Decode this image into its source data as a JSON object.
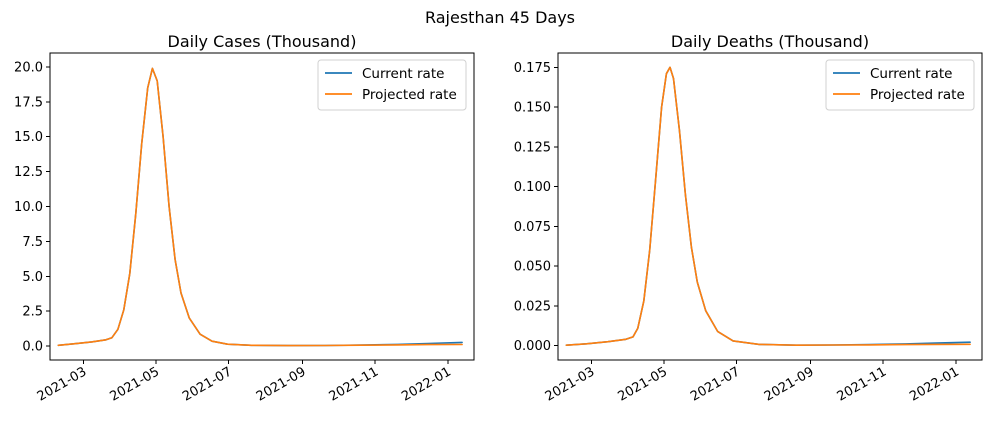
{
  "figure": {
    "suptitle": "Rajesthan 45 Days"
  },
  "chart_data": [
    {
      "type": "line",
      "title": "Daily Cases (Thousand)",
      "xlabel": "",
      "ylabel": "",
      "x_type": "date",
      "xlim": [
        "2021-02-01",
        "2022-01-23"
      ],
      "ylim": [
        -1.0,
        21.0
      ],
      "x_ticks": [
        "2021-03",
        "2021-05",
        "2021-07",
        "2021-09",
        "2021-11",
        "2022-01"
      ],
      "x_tick_dates": [
        "2021-03-01",
        "2021-05-01",
        "2021-07-01",
        "2021-09-01",
        "2021-11-01",
        "2022-01-01"
      ],
      "y_ticks": [
        "0.0",
        "2.5",
        "5.0",
        "7.5",
        "10.0",
        "12.5",
        "15.0",
        "17.5",
        "20.0"
      ],
      "y_tick_values": [
        0.0,
        2.5,
        5.0,
        7.5,
        10.0,
        12.5,
        15.0,
        17.5,
        20.0
      ],
      "grid": false,
      "legend_position": "upper-right",
      "series": [
        {
          "name": "Current rate",
          "color": "#1f77b4",
          "points": [
            [
              "2021-02-08",
              0.05
            ],
            [
              "2021-02-22",
              0.17
            ],
            [
              "2021-03-08",
              0.3
            ],
            [
              "2021-03-20",
              0.45
            ],
            [
              "2021-03-25",
              0.6
            ],
            [
              "2021-03-30",
              1.2
            ],
            [
              "2021-04-04",
              2.6
            ],
            [
              "2021-04-09",
              5.2
            ],
            [
              "2021-04-14",
              9.5
            ],
            [
              "2021-04-19",
              14.5
            ],
            [
              "2021-04-24",
              18.5
            ],
            [
              "2021-04-28",
              19.9
            ],
            [
              "2021-05-02",
              19.0
            ],
            [
              "2021-05-07",
              15.0
            ],
            [
              "2021-05-12",
              10.0
            ],
            [
              "2021-05-17",
              6.2
            ],
            [
              "2021-05-22",
              3.8
            ],
            [
              "2021-05-29",
              2.0
            ],
            [
              "2021-06-07",
              0.85
            ],
            [
              "2021-06-17",
              0.35
            ],
            [
              "2021-06-30",
              0.13
            ],
            [
              "2021-07-20",
              0.05
            ],
            [
              "2021-08-20",
              0.03
            ],
            [
              "2021-09-20",
              0.04
            ],
            [
              "2021-10-20",
              0.07
            ],
            [
              "2021-11-20",
              0.12
            ],
            [
              "2021-12-15",
              0.18
            ],
            [
              "2022-01-13",
              0.26
            ]
          ]
        },
        {
          "name": "Projected rate",
          "color": "#ff7f0e",
          "points": [
            [
              "2021-02-08",
              0.05
            ],
            [
              "2021-02-22",
              0.17
            ],
            [
              "2021-03-08",
              0.3
            ],
            [
              "2021-03-20",
              0.45
            ],
            [
              "2021-03-25",
              0.6
            ],
            [
              "2021-03-30",
              1.2
            ],
            [
              "2021-04-04",
              2.6
            ],
            [
              "2021-04-09",
              5.2
            ],
            [
              "2021-04-14",
              9.5
            ],
            [
              "2021-04-19",
              14.5
            ],
            [
              "2021-04-24",
              18.5
            ],
            [
              "2021-04-28",
              19.9
            ],
            [
              "2021-05-02",
              19.0
            ],
            [
              "2021-05-07",
              15.0
            ],
            [
              "2021-05-12",
              10.0
            ],
            [
              "2021-05-17",
              6.2
            ],
            [
              "2021-05-22",
              3.8
            ],
            [
              "2021-05-29",
              2.0
            ],
            [
              "2021-06-07",
              0.85
            ],
            [
              "2021-06-17",
              0.35
            ],
            [
              "2021-06-30",
              0.13
            ],
            [
              "2021-07-20",
              0.05
            ],
            [
              "2021-08-20",
              0.03
            ],
            [
              "2021-09-20",
              0.04
            ],
            [
              "2021-10-20",
              0.06
            ],
            [
              "2021-11-20",
              0.08
            ],
            [
              "2021-12-15",
              0.1
            ],
            [
              "2022-01-13",
              0.11
            ]
          ]
        }
      ]
    },
    {
      "type": "line",
      "title": "Daily Deaths (Thousand)",
      "xlabel": "",
      "ylabel": "",
      "x_type": "date",
      "xlim": [
        "2021-02-01",
        "2022-01-23"
      ],
      "ylim": [
        -0.009,
        0.184
      ],
      "x_ticks": [
        "2021-03",
        "2021-05",
        "2021-07",
        "2021-09",
        "2021-11",
        "2022-01"
      ],
      "x_tick_dates": [
        "2021-03-01",
        "2021-05-01",
        "2021-07-01",
        "2021-09-01",
        "2021-11-01",
        "2022-01-01"
      ],
      "y_ticks": [
        "0.000",
        "0.025",
        "0.050",
        "0.075",
        "0.100",
        "0.125",
        "0.150",
        "0.175"
      ],
      "y_tick_values": [
        0.0,
        0.025,
        0.05,
        0.075,
        0.1,
        0.125,
        0.15,
        0.175
      ],
      "grid": false,
      "legend_position": "upper-right",
      "series": [
        {
          "name": "Current rate",
          "color": "#1f77b4",
          "points": [
            [
              "2021-02-08",
              0.0003
            ],
            [
              "2021-02-25",
              0.0012
            ],
            [
              "2021-03-15",
              0.0025
            ],
            [
              "2021-03-30",
              0.004
            ],
            [
              "2021-04-05",
              0.0055
            ],
            [
              "2021-04-09",
              0.011
            ],
            [
              "2021-04-14",
              0.028
            ],
            [
              "2021-04-19",
              0.06
            ],
            [
              "2021-04-24",
              0.105
            ],
            [
              "2021-04-29",
              0.15
            ],
            [
              "2021-05-03",
              0.171
            ],
            [
              "2021-05-06",
              0.175
            ],
            [
              "2021-05-09",
              0.168
            ],
            [
              "2021-05-14",
              0.135
            ],
            [
              "2021-05-19",
              0.095
            ],
            [
              "2021-05-24",
              0.062
            ],
            [
              "2021-05-29",
              0.04
            ],
            [
              "2021-06-05",
              0.022
            ],
            [
              "2021-06-15",
              0.009
            ],
            [
              "2021-06-28",
              0.003
            ],
            [
              "2021-07-20",
              0.0008
            ],
            [
              "2021-08-20",
              0.0003
            ],
            [
              "2021-09-20",
              0.0004
            ],
            [
              "2021-10-20",
              0.0007
            ],
            [
              "2021-11-20",
              0.0011
            ],
            [
              "2021-12-15",
              0.0016
            ],
            [
              "2022-01-13",
              0.0022
            ]
          ]
        },
        {
          "name": "Projected rate",
          "color": "#ff7f0e",
          "points": [
            [
              "2021-02-08",
              0.0003
            ],
            [
              "2021-02-25",
              0.0012
            ],
            [
              "2021-03-15",
              0.0025
            ],
            [
              "2021-03-30",
              0.004
            ],
            [
              "2021-04-05",
              0.0055
            ],
            [
              "2021-04-09",
              0.011
            ],
            [
              "2021-04-14",
              0.028
            ],
            [
              "2021-04-19",
              0.06
            ],
            [
              "2021-04-24",
              0.105
            ],
            [
              "2021-04-29",
              0.15
            ],
            [
              "2021-05-03",
              0.171
            ],
            [
              "2021-05-06",
              0.175
            ],
            [
              "2021-05-09",
              0.168
            ],
            [
              "2021-05-14",
              0.135
            ],
            [
              "2021-05-19",
              0.095
            ],
            [
              "2021-05-24",
              0.062
            ],
            [
              "2021-05-29",
              0.04
            ],
            [
              "2021-06-05",
              0.022
            ],
            [
              "2021-06-15",
              0.009
            ],
            [
              "2021-06-28",
              0.003
            ],
            [
              "2021-07-20",
              0.0008
            ],
            [
              "2021-08-20",
              0.0003
            ],
            [
              "2021-09-20",
              0.0004
            ],
            [
              "2021-10-20",
              0.0005
            ],
            [
              "2021-11-20",
              0.0007
            ],
            [
              "2021-12-15",
              0.0008
            ],
            [
              "2022-01-13",
              0.0009
            ]
          ]
        }
      ]
    }
  ]
}
